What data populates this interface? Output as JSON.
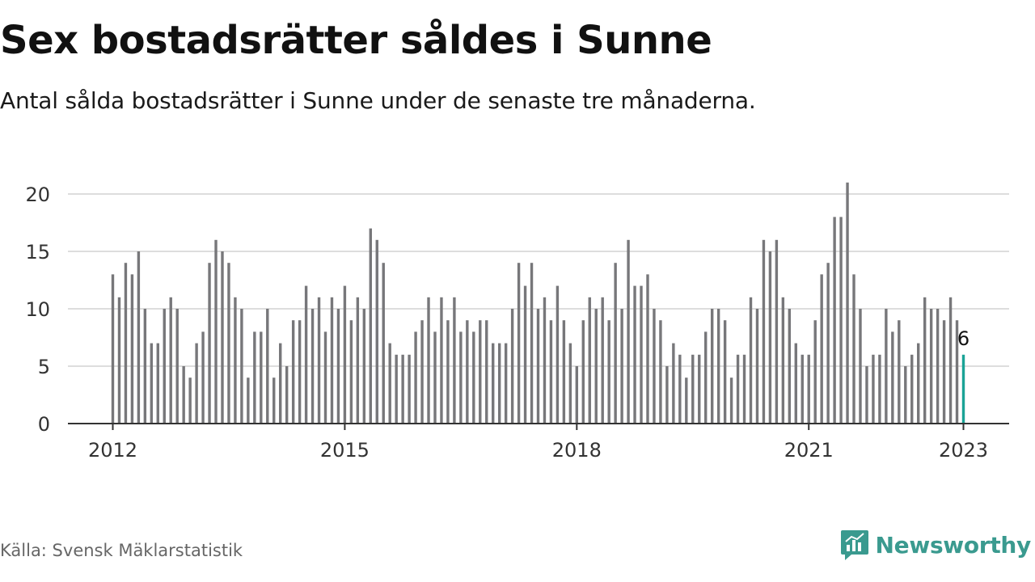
{
  "header": {
    "title": "Sex bostadsrätter såldes i Sunne",
    "subtitle": "Antal sålda bostadsrätter i Sunne under de senaste tre månaderna."
  },
  "footer": {
    "source": "Källa: Svensk Mäklarstatistik",
    "brand": "Newsworthy",
    "brand_icon": "newsworthy-logo-icon"
  },
  "colors": {
    "bar": "#77777a",
    "highlight": "#1aa396",
    "grid": "#dddddd",
    "axis": "#333333",
    "brand": "#3a9a8f"
  },
  "chart_data": {
    "type": "bar",
    "title": "Sex bostadsrätter såldes i Sunne",
    "subtitle": "Antal sålda bostadsrätter i Sunne under de senaste tre månaderna.",
    "xlabel": "",
    "ylabel": "",
    "x_start": "2012-01",
    "x_end": "2023-01",
    "x_ticks": [
      "2012",
      "2015",
      "2018",
      "2021",
      "2023"
    ],
    "y_ticks": [
      0,
      5,
      10,
      15,
      20
    ],
    "ylim": [
      0,
      22
    ],
    "grid": true,
    "legend": "none",
    "highlight_label": "6",
    "values": [
      13,
      11,
      14,
      13,
      15,
      10,
      7,
      7,
      10,
      11,
      10,
      5,
      4,
      7,
      8,
      14,
      16,
      15,
      14,
      11,
      10,
      4,
      8,
      8,
      10,
      4,
      7,
      5,
      9,
      9,
      12,
      10,
      11,
      8,
      11,
      10,
      12,
      9,
      11,
      10,
      17,
      16,
      14,
      7,
      6,
      6,
      6,
      8,
      9,
      11,
      8,
      11,
      9,
      11,
      8,
      9,
      8,
      9,
      9,
      7,
      7,
      7,
      10,
      14,
      12,
      14,
      10,
      11,
      9,
      12,
      9,
      7,
      5,
      9,
      11,
      10,
      11,
      9,
      14,
      10,
      16,
      12,
      12,
      13,
      10,
      9,
      5,
      7,
      6,
      4,
      6,
      6,
      8,
      10,
      10,
      9,
      4,
      6,
      6,
      11,
      10,
      16,
      15,
      16,
      11,
      10,
      7,
      6,
      6,
      9,
      13,
      14,
      18,
      18,
      21,
      13,
      10,
      5,
      6,
      6,
      10,
      8,
      9,
      5,
      6,
      7,
      11,
      10,
      10,
      9,
      11,
      9,
      6
    ]
  }
}
